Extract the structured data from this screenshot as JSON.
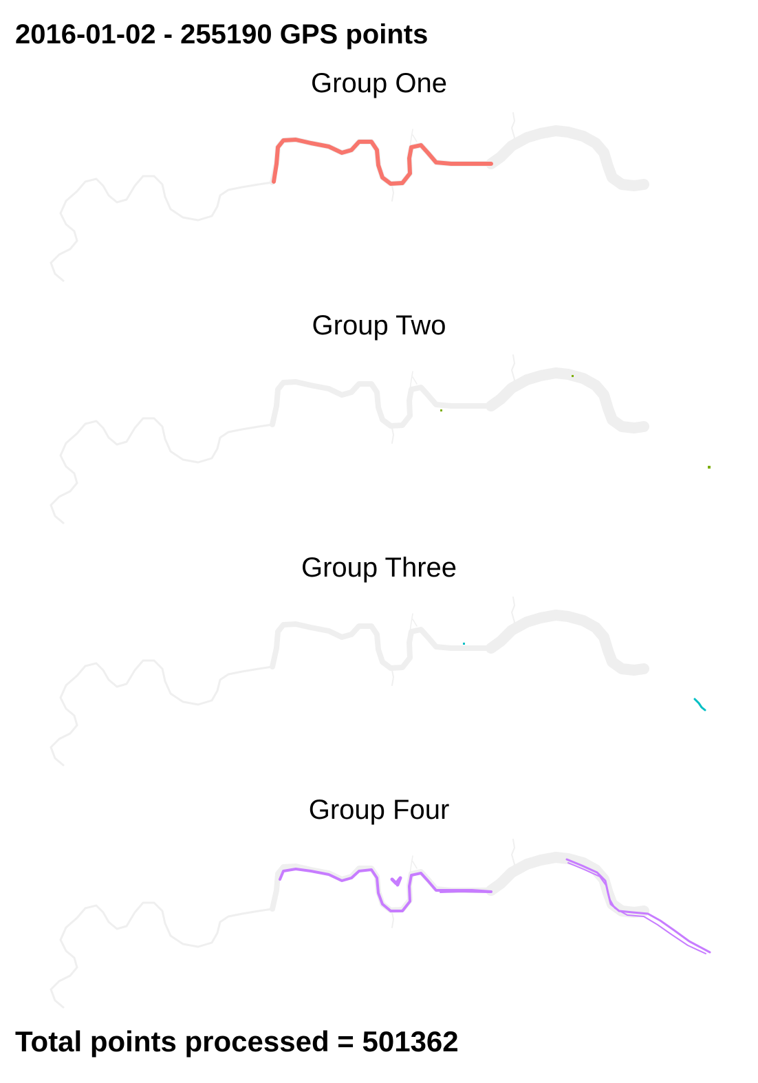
{
  "figure": {
    "title": "2016-01-02 - 255190 GPS points",
    "footer": "Total points processed = 501362"
  },
  "colors": {
    "river": "#efefef",
    "group_one": "#f8766d",
    "group_two": "#7cae00",
    "group_three": "#00bfc4",
    "group_four": "#c77cff"
  },
  "panels": [
    {
      "id": "group-one",
      "title": "Group One",
      "color": "#f8766d"
    },
    {
      "id": "group-two",
      "title": "Group Two",
      "color": "#7cae00"
    },
    {
      "id": "group-three",
      "title": "Group Three",
      "color": "#00bfc4"
    },
    {
      "id": "group-four",
      "title": "Group Four",
      "color": "#c77cff"
    }
  ]
}
